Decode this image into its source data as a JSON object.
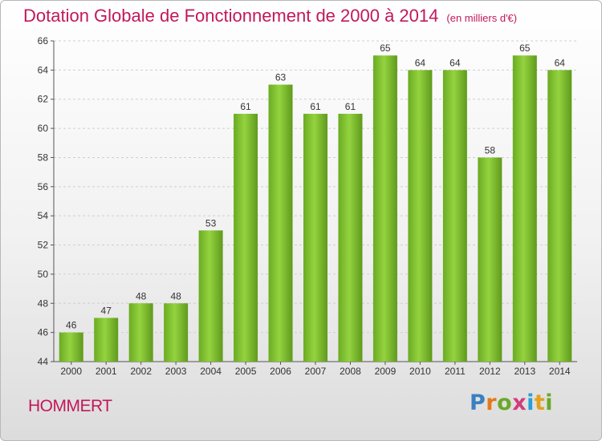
{
  "header": {
    "title": "Dotation Globale de Fonctionnement de 2000 à 2014",
    "unit": "(en milliers d'€)"
  },
  "footer": {
    "commune": "HOMMERT"
  },
  "logo": {
    "letters": [
      "P",
      "r",
      "o",
      "x",
      "i",
      "t",
      "i"
    ],
    "colors": [
      "#3a7fc1",
      "#e2791e",
      "#6aa82a",
      "#d23c7d",
      "#2a9fd6",
      "#e2a11e",
      "#6aa82a"
    ]
  },
  "chart_data": {
    "type": "bar",
    "title": "Dotation Globale de Fonctionnement de 2000 à 2014",
    "categories": [
      "2000",
      "2001",
      "2002",
      "2003",
      "2004",
      "2005",
      "2006",
      "2007",
      "2008",
      "2009",
      "2010",
      "2011",
      "2012",
      "2013",
      "2014"
    ],
    "values": [
      46,
      47,
      48,
      48,
      53,
      61,
      63,
      61,
      61,
      65,
      64,
      64,
      58,
      65,
      64
    ],
    "ylim": [
      44,
      66
    ],
    "yticks": [
      44,
      46,
      48,
      50,
      52,
      54,
      56,
      58,
      60,
      62,
      64,
      66
    ],
    "grid": true,
    "bar_color": "#7cc12d"
  }
}
